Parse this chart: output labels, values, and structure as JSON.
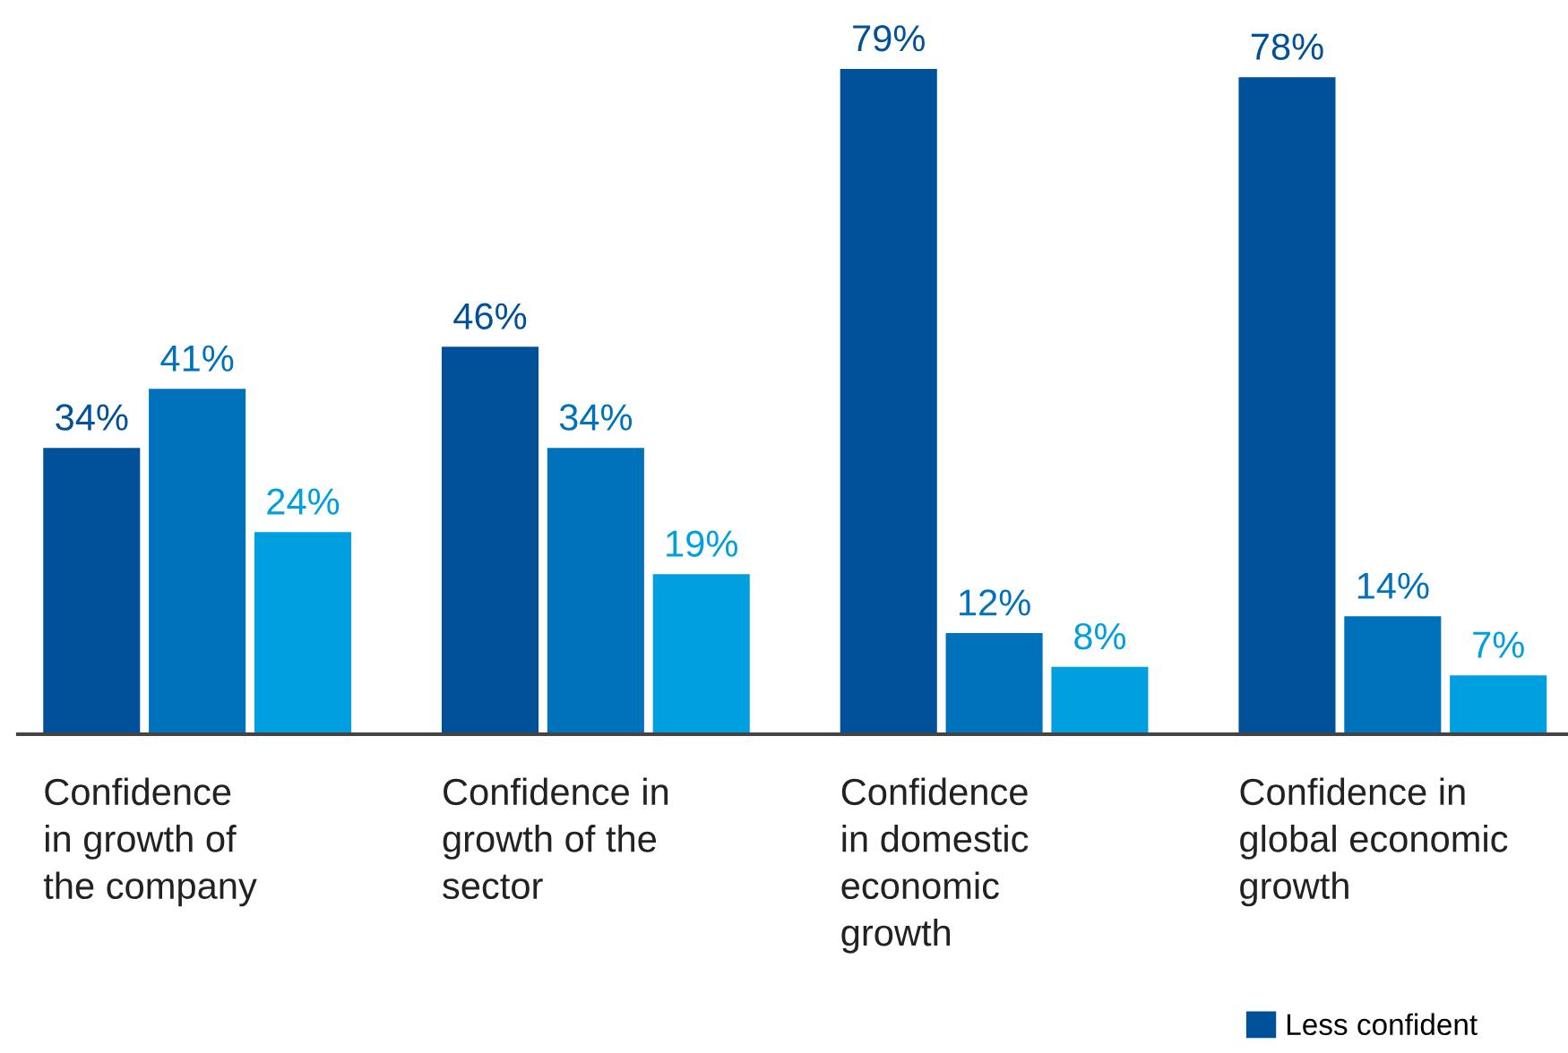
{
  "chart_data": {
    "type": "bar",
    "categories": [
      "Confidence\nin growth of\nthe company",
      "Confidence in\ngrowth of the\nsector",
      "Confidence\nin domestic\neconomic\ngrowth",
      "Confidence in\nglobal economic\ngrowth"
    ],
    "series": [
      {
        "name": "Less confident",
        "color": "#00509a",
        "values": [
          34,
          46,
          79,
          78
        ],
        "value_labels": [
          "34%",
          "46%",
          "79%",
          "78%"
        ]
      },
      {
        "color": "#0072bb",
        "values": [
          41,
          34,
          12,
          14
        ],
        "value_labels": [
          "41%",
          "34%",
          "12%",
          "14%"
        ]
      },
      {
        "color": "#009fdf",
        "values": [
          24,
          19,
          8,
          7
        ],
        "value_labels": [
          "24%",
          "19%",
          "8%",
          "7%"
        ]
      }
    ],
    "legend": "bottom right"
  }
}
